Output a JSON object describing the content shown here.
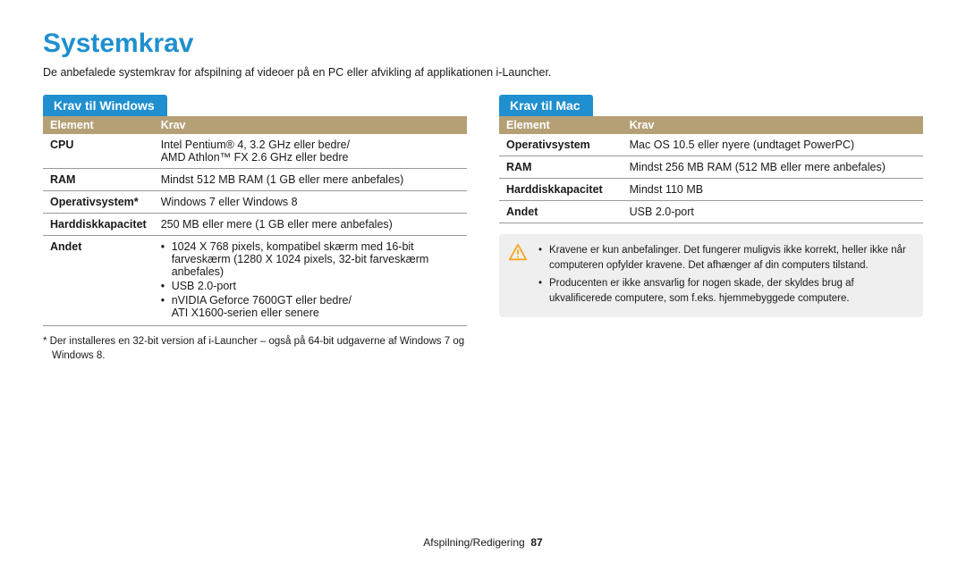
{
  "colors": {
    "titleColor": "#1f8fcf",
    "tabBg": "#1f8fcf",
    "headerBg": "#b5a076",
    "calloutBg": "#efefef",
    "warnIcon": "#f6a623",
    "textColor": "#1a1a1a",
    "rowBorder": "#999999",
    "pageBg": "#ffffff"
  },
  "typography": {
    "titleSize": 30,
    "bodySize": 12.5,
    "footnoteSize": 11.5,
    "footerSize": 12,
    "fontFamily": "Arial, Helvetica, sans-serif"
  },
  "title": "Systemkrav",
  "intro": "De anbefalede systemkrav for afspilning af videoer på en PC eller afvikling af applikationen i-Launcher.",
  "windows": {
    "tab": "Krav til Windows",
    "header": {
      "c1": "Element",
      "c2": "Krav"
    },
    "rows": [
      {
        "label": "CPU",
        "value": "Intel Pentium® 4, 3.2 GHz eller bedre/\nAMD Athlon™ FX 2.6 GHz eller bedre"
      },
      {
        "label": "RAM",
        "value": "Mindst 512 MB RAM (1 GB eller mere anbefales)"
      },
      {
        "label": "Operativsystem*",
        "value": "Windows 7 eller Windows 8"
      },
      {
        "label": "Harddiskkapacitet",
        "value": "250 MB eller mere (1 GB eller mere anbefales)"
      },
      {
        "label": "Andet",
        "list": [
          "1024 X 768 pixels, kompatibel skærm med 16-bit farveskærm (1280 X 1024 pixels, 32-bit farveskærm anbefales)",
          "USB 2.0-port",
          "nVIDIA Geforce 7600GT eller bedre/\nATI X1600-serien eller senere"
        ]
      }
    ],
    "footnote": "*  Der installeres en 32-bit version af i-Launcher – også på 64-bit udgaverne af Windows 7 og Windows 8."
  },
  "mac": {
    "tab": "Krav til Mac",
    "header": {
      "c1": "Element",
      "c2": "Krav"
    },
    "rows": [
      {
        "label": "Operativsystem",
        "value": "Mac OS 10.5 eller nyere (undtaget PowerPC)"
      },
      {
        "label": "RAM",
        "value": "Mindst 256 MB RAM (512 MB eller mere anbefales)"
      },
      {
        "label": "Harddiskkapacitet",
        "value": "Mindst 110 MB"
      },
      {
        "label": "Andet",
        "value": "USB 2.0-port"
      }
    ],
    "callout": [
      "Kravene er kun anbefalinger. Det fungerer muligvis ikke korrekt, heller ikke når computeren opfylder kravene. Det afhænger af din computers tilstand.",
      "Producenten er ikke ansvarlig for nogen skade, der skyldes brug af ukvalificerede computere, som f.eks. hjemmebyggede computere."
    ]
  },
  "footer": {
    "section": "Afspilning/Redigering",
    "page": "87"
  }
}
